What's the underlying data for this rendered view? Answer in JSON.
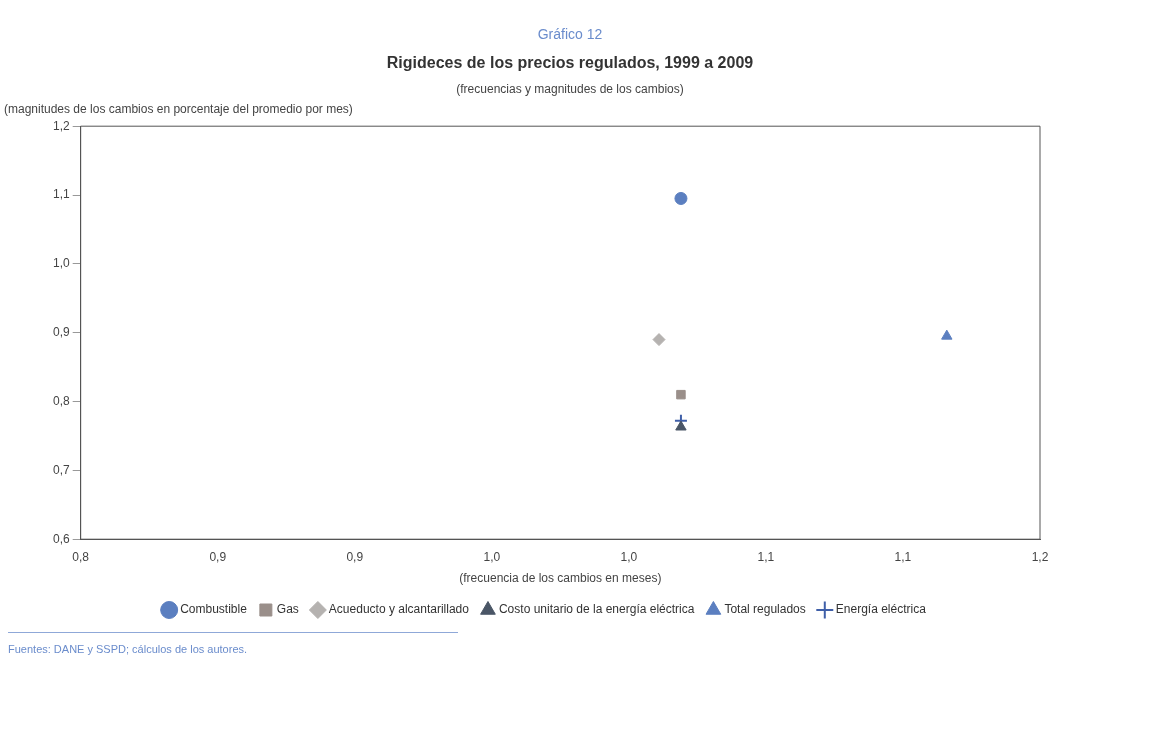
{
  "chart_data": {
    "type": "scatter",
    "title": "Rigideces de los precios regulados, 1999 a 2009",
    "subtitle": "(frecuencias y magnitudes de los cambios)",
    "ylabel": "(magnitudes de los cambios en porcentaje del promedio por mes)",
    "xlabel": "(frecuencia de los cambios en meses)",
    "annotations": [
      "Gráfico 12",
      "Fuentes: DANE y SSPD; cálculos de los autores."
    ],
    "series": [
      {
        "name": "Combustible",
        "color": "#5b7fc0",
        "marker": "circle",
        "x": [
          1.019
        ],
        "values": [
          1.095
        ]
      },
      {
        "name": "Gas",
        "color": "#9a8f8a",
        "marker": "square",
        "x": [
          1.019
        ],
        "values": [
          0.81
        ]
      },
      {
        "name": "Acueducto y alcantarillado",
        "color": "#b5b2b0",
        "marker": "diamond",
        "x": [
          1.011
        ],
        "values": [
          0.89
        ]
      },
      {
        "name": "Costo unitario de la energía eléctrica",
        "color": "#4a5666",
        "marker": "triangle",
        "x": [
          1.019
        ],
        "values": [
          0.763
        ]
      },
      {
        "name": "Total regulados",
        "color": "#5b7fc0",
        "marker": "triangle",
        "x": [
          1.116
        ],
        "values": [
          0.895
        ]
      },
      {
        "name": "Energía eléctrica",
        "color": "#3f5fa8",
        "marker": "cross",
        "x": [
          1.019
        ],
        "values": [
          0.772
        ]
      }
    ],
    "xlim": [
      0.8,
      1.15
    ],
    "xticks": [
      {
        "value": 0.8,
        "label": "0,8"
      },
      {
        "value": 0.85,
        "label": "0,9"
      },
      {
        "value": 0.9,
        "label": "0,9"
      },
      {
        "value": 0.95,
        "label": "1,0"
      },
      {
        "value": 1.0,
        "label": "1,0"
      },
      {
        "value": 1.05,
        "label": "1,1"
      },
      {
        "value": 1.1,
        "label": "1,1"
      },
      {
        "value": 1.15,
        "label": "1,2"
      }
    ],
    "ylim": [
      0.6,
      1.2
    ],
    "yticks": [
      {
        "value": 0.6,
        "label": "0,6"
      },
      {
        "value": 0.7,
        "label": "0,7"
      },
      {
        "value": 0.8,
        "label": "0,8"
      },
      {
        "value": 0.9,
        "label": "0,9"
      },
      {
        "value": 1.0,
        "label": "1,0"
      },
      {
        "value": 1.1,
        "label": "1,1"
      },
      {
        "value": 1.2,
        "label": "1,2"
      }
    ],
    "grid": false,
    "legend": "bottom"
  }
}
